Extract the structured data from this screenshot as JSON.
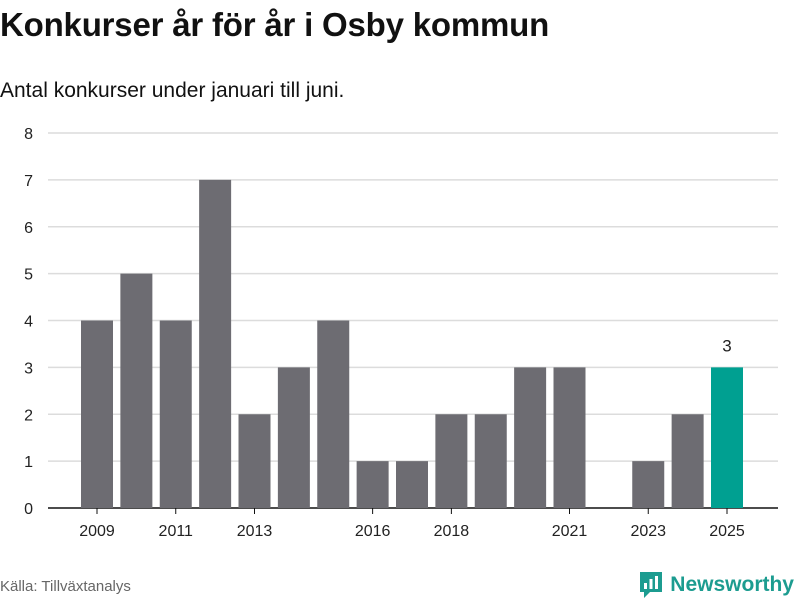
{
  "header": {
    "title": "Konkurser år för år i Osby kommun",
    "subtitle": "Antal konkurser under januari till juni."
  },
  "footer": {
    "source": "Källa: Tillväxtanalys",
    "brand": "Newsworthy",
    "brand_icon": "newsworthy-logo-icon"
  },
  "colors": {
    "bar": "#6d6c72",
    "highlight": "#00a091",
    "grid": "#dcdcdc",
    "brand": "#1c9c90"
  },
  "chart_data": {
    "type": "bar",
    "categories": [
      "2009",
      "2010",
      "2011",
      "2012",
      "2013",
      "2014",
      "2015",
      "2016",
      "2017",
      "2018",
      "2019",
      "2020",
      "2021",
      "2022",
      "2023",
      "2024",
      "2025"
    ],
    "values": [
      4,
      5,
      4,
      7,
      2,
      3,
      4,
      1,
      1,
      2,
      2,
      3,
      3,
      0,
      1,
      2,
      3
    ],
    "highlight_category": "2025",
    "data_labels": [
      {
        "category": "2025",
        "text": "3"
      }
    ],
    "x_tick_labels": [
      "2009",
      "2011",
      "2013",
      "2016",
      "2018",
      "2021",
      "2023",
      "2025"
    ],
    "y_ticks": [
      0,
      1,
      2,
      3,
      4,
      5,
      6,
      7,
      8
    ],
    "ylim": [
      0,
      8
    ],
    "grid": true,
    "legend": "none"
  }
}
